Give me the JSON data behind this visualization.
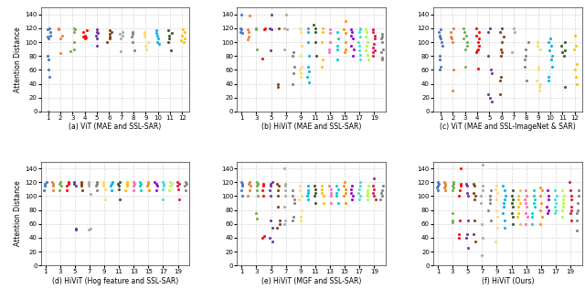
{
  "colors_12": [
    "#4472C4",
    "#ED7D31",
    "#70AD47",
    "#FF0000",
    "#7030A0",
    "#843C0C",
    "#A9A9A9",
    "#808080",
    "#FFD966",
    "#00B0F0",
    "#375623",
    "#FFC000"
  ],
  "colors_20": [
    "#4472C4",
    "#ED7D31",
    "#70AD47",
    "#FF0000",
    "#7030A0",
    "#843C0C",
    "#A9A9A9",
    "#808080",
    "#FFD966",
    "#00B0F0",
    "#375623",
    "#FFC000",
    "#FF69B4",
    "#00CED1",
    "#FF8C00",
    "#9400D3",
    "#40E0D0",
    "#ADFF2F",
    "#DC143C",
    "#808080"
  ],
  "subplots": [
    {
      "title": "(a) ViT (MAE and SSL-SAR)",
      "xticks": [
        1,
        2,
        3,
        4,
        5,
        6,
        7,
        8,
        9,
        10,
        11,
        12
      ],
      "xlim": [
        0.4,
        12.6
      ],
      "n_heads": 12,
      "data": {
        "1": [
          0.5,
          50,
          60,
          75,
          80,
          105,
          108,
          110,
          115,
          118,
          120
        ],
        "2": [
          84,
          105,
          110,
          118,
          120
        ],
        "3": [
          87,
          90,
          100,
          115,
          118,
          120
        ],
        "4": [
          105,
          107,
          108,
          110,
          115,
          117
        ],
        "5": [
          95,
          105,
          110,
          113,
          115,
          118
        ],
        "6": [
          100,
          105,
          108,
          112,
          115,
          117
        ],
        "7": [
          87,
          105,
          110,
          112,
          115
        ],
        "8": [
          88,
          100,
          108,
          112,
          115
        ],
        "9": [
          90,
          95,
          100,
          108,
          112,
          115
        ],
        "10": [
          97,
          100,
          105,
          110,
          113,
          117
        ],
        "11": [
          88,
          100,
          105,
          110,
          113,
          117
        ],
        "12": [
          100,
          103,
          105,
          110,
          115,
          118
        ]
      }
    },
    {
      "title": "(b) HiViT (MAE and SSL-SAR)",
      "xticks": [
        1,
        3,
        5,
        7,
        9,
        11,
        13,
        15,
        17,
        19
      ],
      "xlim": [
        0.4,
        20.6
      ],
      "n_heads": 20,
      "data": {
        "1": [
          113,
          115,
          118,
          120,
          140
        ],
        "2": [
          104,
          108,
          115,
          118,
          138
        ],
        "3": [
          90,
          118,
          120
        ],
        "4": [
          76,
          118,
          120
        ],
        "5": [
          88,
          118,
          120,
          140
        ],
        "6": [
          36,
          40,
          120
        ],
        "7": [
          90,
          118,
          120,
          140
        ],
        "8": [
          40,
          55,
          65,
          80,
          85
        ],
        "9": [
          50,
          55,
          60,
          65,
          80,
          95,
          115,
          120
        ],
        "10": [
          42,
          50,
          58,
          65,
          80,
          100,
          115,
          120
        ],
        "11": [
          80,
          100,
          115,
          120,
          125
        ],
        "12": [
          65,
          75,
          100,
          115,
          120
        ],
        "13": [
          85,
          90,
          100,
          113,
          118
        ],
        "14": [
          75,
          90,
          95,
          105,
          115
        ],
        "15": [
          85,
          90,
          100,
          113,
          118,
          130
        ],
        "16": [
          80,
          90,
          95,
          105,
          110,
          115,
          118
        ],
        "17": [
          75,
          82,
          88,
          95,
          100,
          108,
          115,
          118,
          120
        ],
        "18": [
          75,
          82,
          88,
          95,
          100,
          108,
          115,
          118
        ],
        "19": [
          80,
          85,
          88,
          92,
          98,
          105,
          110,
          115,
          118
        ],
        "20": [
          75,
          78,
          85,
          90,
          100,
          105,
          108,
          112
        ]
      }
    },
    {
      "title": "(c) ViT (MAE and SSL-ImageNet & SAR)",
      "xticks": [
        1,
        2,
        3,
        4,
        5,
        6,
        7,
        8,
        9,
        10,
        11,
        12
      ],
      "xlim": [
        0.4,
        12.6
      ],
      "n_heads": 12,
      "data": {
        "1": [
          60,
          65,
          75,
          80,
          95,
          100,
          105,
          108,
          110,
          115,
          118
        ],
        "2": [
          30,
          60,
          100,
          105,
          108,
          115,
          120
        ],
        "3": [
          65,
          90,
          95,
          100,
          105,
          110,
          115,
          120
        ],
        "4": [
          62,
          85,
          88,
          90,
          95,
          100,
          105,
          110,
          115,
          120
        ],
        "5": [
          15,
          20,
          25,
          55,
          60,
          80,
          115,
          120
        ],
        "6": [
          25,
          45,
          50,
          80,
          85,
          90,
          100,
          108,
          115,
          120
        ],
        "7": [
          85,
          115,
          120
        ],
        "8": [
          45,
          65,
          75,
          80,
          90,
          100
        ],
        "9": [
          30,
          35,
          40,
          45,
          60,
          65,
          90,
          95,
          100
        ],
        "10": [
          45,
          50,
          65,
          75,
          80,
          88,
          95,
          100,
          105
        ],
        "11": [
          35,
          80,
          85,
          88,
          95,
          100
        ],
        "12": [
          40,
          50,
          60,
          68,
          90,
          95,
          110
        ]
      }
    },
    {
      "title": "(d) HiViT (Hog feature and SSL-SAR)",
      "xticks": [
        1,
        3,
        5,
        7,
        9,
        11,
        13,
        15,
        17,
        19
      ],
      "xlim": [
        0.4,
        20.6
      ],
      "n_heads": 20,
      "data": {
        "1": [
          108,
          115,
          118,
          120
        ],
        "2": [
          108,
          115,
          118,
          120
        ],
        "3": [
          108,
          115,
          118,
          120
        ],
        "4": [
          108,
          115,
          118,
          120
        ],
        "5": [
          52,
          53,
          115,
          118,
          120
        ],
        "6": [
          108,
          115,
          118,
          120
        ],
        "7": [
          103,
          52,
          53,
          115,
          118,
          120
        ],
        "8": [
          108,
          115,
          118,
          120
        ],
        "9": [
          95,
          110,
          115,
          118,
          120
        ],
        "10": [
          108,
          115,
          118,
          120
        ],
        "11": [
          95,
          110,
          115,
          118,
          120
        ],
        "12": [
          108,
          115,
          118,
          120
        ],
        "13": [
          108,
          115,
          118,
          120
        ],
        "14": [
          108,
          115,
          118,
          120
        ],
        "15": [
          108,
          115,
          118,
          120
        ],
        "16": [
          108,
          115,
          118,
          120
        ],
        "17": [
          95,
          110,
          115,
          118,
          120
        ],
        "18": [
          108,
          115,
          118,
          120
        ],
        "19": [
          95,
          110,
          115,
          118,
          120
        ],
        "20": [
          108,
          115,
          118,
          120
        ]
      }
    },
    {
      "title": "(e) HiViT (MGF and SSL-SAR)",
      "xticks": [
        1,
        3,
        5,
        7,
        9,
        11,
        13,
        15,
        17,
        19
      ],
      "xlim": [
        0.4,
        20.6
      ],
      "n_heads": 20,
      "data": {
        "1": [
          100,
          108,
          115,
          118,
          120
        ],
        "2": [
          100,
          108,
          115,
          118,
          120
        ],
        "3": [
          67,
          75,
          100,
          108,
          115,
          118,
          120
        ],
        "4": [
          40,
          42,
          100,
          108,
          115,
          118
        ],
        "5": [
          35,
          40,
          55,
          65,
          100,
          108,
          115,
          118,
          120
        ],
        "6": [
          55,
          60,
          65,
          85,
          100,
          108,
          115,
          118
        ],
        "7": [
          60,
          65,
          85,
          100,
          108,
          115,
          118,
          140
        ],
        "8": [
          65,
          70,
          90,
          95,
          100,
          108
        ],
        "9": [
          65,
          70,
          80,
          95,
          100,
          108,
          115
        ],
        "10": [
          95,
          100,
          105,
          108,
          115
        ],
        "11": [
          90,
          100,
          105,
          110,
          115
        ],
        "12": [
          90,
          100,
          105,
          110,
          115
        ],
        "13": [
          90,
          100,
          105,
          110,
          115
        ],
        "14": [
          90,
          100,
          105,
          110,
          115
        ],
        "15": [
          90,
          100,
          105,
          110,
          115,
          120
        ],
        "16": [
          95,
          100,
          105,
          110,
          115
        ],
        "17": [
          95,
          100,
          105,
          110,
          115,
          120
        ],
        "18": [
          95,
          100,
          105,
          108,
          115
        ],
        "19": [
          95,
          100,
          105,
          110,
          115,
          125
        ],
        "20": [
          95,
          100,
          105,
          108,
          115
        ]
      }
    },
    {
      "title": "(f) HiViT (Ours)",
      "xticks": [
        1,
        3,
        5,
        7,
        9,
        11,
        13,
        15,
        17,
        19
      ],
      "xlim": [
        0.4,
        20.6
      ],
      "n_heads": 20,
      "data": {
        "1": [
          108,
          113,
          115,
          118,
          120
        ],
        "2": [
          108,
          113,
          115,
          118,
          120
        ],
        "3": [
          63,
          65,
          75,
          108,
          113,
          115,
          118,
          120
        ],
        "4": [
          40,
          45,
          65,
          100,
          108,
          115,
          118,
          140
        ],
        "5": [
          25,
          40,
          45,
          65,
          100,
          105,
          115,
          118
        ],
        "6": [
          35,
          45,
          65,
          95,
          100,
          105,
          115,
          118
        ],
        "7": [
          15,
          40,
          60,
          90,
          100,
          108,
          115,
          145
        ],
        "8": [
          65,
          80,
          90,
          95,
          100,
          108
        ],
        "9": [
          35,
          55,
          70,
          80,
          95,
          105,
          110,
          115
        ],
        "10": [
          55,
          65,
          75,
          85,
          90,
          95,
          100,
          108,
          115
        ],
        "11": [
          60,
          70,
          75,
          85,
          90,
          95,
          100,
          108
        ],
        "12": [
          60,
          70,
          75,
          85,
          90,
          95,
          100,
          108
        ],
        "13": [
          60,
          70,
          75,
          85,
          90,
          95,
          100,
          108
        ],
        "14": [
          60,
          70,
          75,
          85,
          90,
          95,
          100,
          108
        ],
        "15": [
          60,
          70,
          80,
          90,
          100,
          108,
          113
        ],
        "16": [
          75,
          80,
          85,
          95,
          100,
          108
        ],
        "17": [
          75,
          80,
          85,
          90,
          95,
          100,
          108
        ],
        "18": [
          70,
          80,
          85,
          90,
          95,
          100,
          108
        ],
        "19": [
          65,
          75,
          80,
          85,
          95,
          100,
          108,
          120
        ],
        "20": [
          50,
          65,
          75,
          80,
          90,
          100,
          108
        ]
      }
    }
  ]
}
